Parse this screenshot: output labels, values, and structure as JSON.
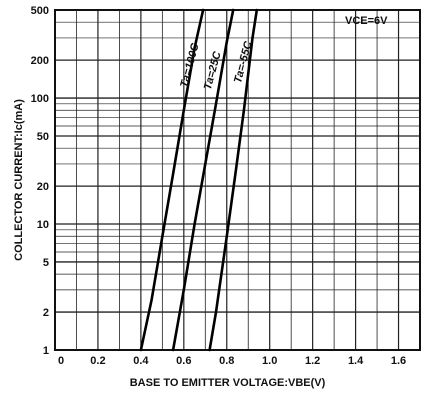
{
  "chart_data": {
    "type": "line",
    "xlabel": "BASE TO EMITTER VOLTAGE:VBE(V)",
    "ylabel": "COLLECTOR CURRENT:Ic(mA)",
    "annotation": "VCE=6V",
    "x_scale": "linear",
    "y_scale": "log",
    "xlim": [
      0,
      1.7
    ],
    "ylim": [
      1,
      500
    ],
    "grid": true,
    "x_ticks": [
      "0",
      "0.2",
      "0.4",
      "0.6",
      "0.8",
      "1.0",
      "1.2",
      "1.4",
      "1.6"
    ],
    "y_ticks": [
      "1",
      "2",
      "5",
      "10",
      "20",
      "50",
      "100",
      "200",
      "500"
    ],
    "series": [
      {
        "name": "Ta=100C",
        "x": [
          0.4,
          0.45,
          0.5,
          0.55,
          0.6,
          0.65,
          0.69
        ],
        "y": [
          1,
          2.5,
          8,
          25,
          80,
          250,
          500
        ]
      },
      {
        "name": "Ta=25C",
        "x": [
          0.55,
          0.6,
          0.65,
          0.7,
          0.75,
          0.8,
          0.83
        ],
        "y": [
          1,
          3,
          10,
          30,
          90,
          280,
          500
        ]
      },
      {
        "name": "Ta=-55C",
        "x": [
          0.72,
          0.75,
          0.8,
          0.84,
          0.88,
          0.92,
          0.94
        ],
        "y": [
          1,
          2,
          8,
          25,
          80,
          300,
          500
        ]
      }
    ]
  }
}
